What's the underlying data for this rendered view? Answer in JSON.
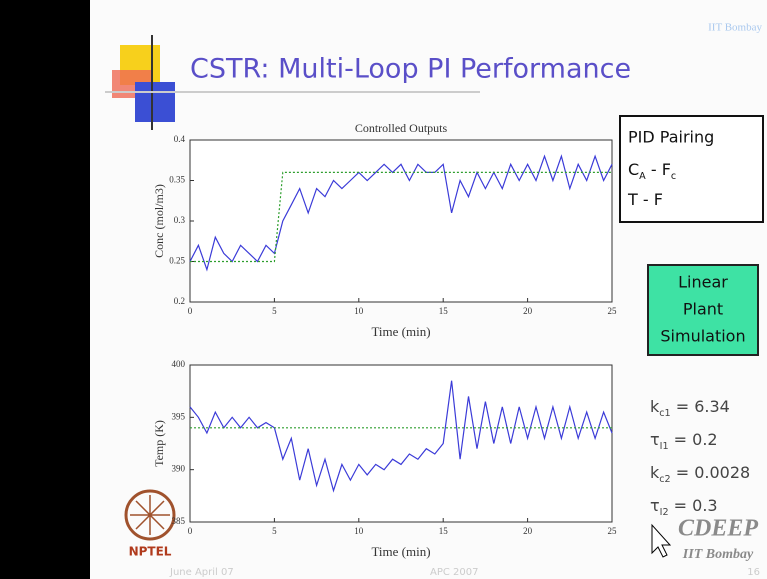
{
  "slide": {
    "title": "CSTR: Multi-Loop PI Performance",
    "institute": "IIT Bombay",
    "pid_box": {
      "heading": "PID Pairing",
      "pairs": [
        [
          "C",
          "A",
          " - F",
          "c"
        ],
        [
          "T - F"
        ]
      ]
    },
    "sim_box": [
      "Linear",
      "Plant",
      "Simulation"
    ],
    "params": [
      [
        "k",
        "c1",
        " = 6.34"
      ],
      [
        "τ",
        "I1",
        " = 0.2"
      ],
      [
        "k",
        "c2",
        " = 0.0028"
      ],
      [
        "τ",
        "I2",
        " = 0.3"
      ]
    ],
    "footer": {
      "date": "June April 07",
      "course": "APC 2007",
      "page": "16"
    },
    "logos": {
      "nptel": "NPTEL",
      "cdeep": "CDEEP",
      "cdeep_sub": "IIT Bombay"
    }
  },
  "chart_data": [
    {
      "type": "line",
      "title": "Controlled Outputs",
      "xlabel": "Time (min)",
      "ylabel": "Conc (mol/m3)",
      "x": [
        0,
        0.5,
        1,
        1.5,
        2,
        2.5,
        3,
        3.5,
        4,
        4.5,
        5,
        5.5,
        6,
        6.5,
        7,
        7.5,
        8,
        8.5,
        9,
        9.5,
        10,
        10.5,
        11,
        11.5,
        12,
        12.5,
        13,
        13.5,
        14,
        14.5,
        15,
        15.5,
        16,
        16.5,
        17,
        17.5,
        18,
        18.5,
        19,
        19.5,
        20,
        20.5,
        21,
        21.5,
        22,
        22.5,
        23,
        23.5,
        24,
        24.5,
        25
      ],
      "xlim": [
        0,
        25
      ],
      "xticks": [
        0,
        5,
        10,
        15,
        20,
        25
      ],
      "ylim": [
        0.2,
        0.4
      ],
      "yticks": [
        0.2,
        0.25,
        0.3,
        0.35,
        0.4
      ],
      "series": [
        {
          "color": "#3b3bd8",
          "style": "solid",
          "values": [
            0.25,
            0.27,
            0.24,
            0.28,
            0.26,
            0.25,
            0.27,
            0.26,
            0.25,
            0.27,
            0.26,
            0.3,
            0.32,
            0.34,
            0.31,
            0.34,
            0.33,
            0.35,
            0.34,
            0.35,
            0.36,
            0.35,
            0.36,
            0.37,
            0.36,
            0.37,
            0.35,
            0.37,
            0.36,
            0.36,
            0.37,
            0.31,
            0.35,
            0.33,
            0.36,
            0.34,
            0.36,
            0.34,
            0.37,
            0.35,
            0.37,
            0.35,
            0.38,
            0.35,
            0.38,
            0.34,
            0.37,
            0.35,
            0.38,
            0.35,
            0.37
          ]
        },
        {
          "color": "#2e9e2e",
          "style": "dotted",
          "values": [
            0.25,
            0.25,
            0.25,
            0.25,
            0.25,
            0.25,
            0.25,
            0.25,
            0.25,
            0.25,
            0.25,
            0.36,
            0.36,
            0.36,
            0.36,
            0.36,
            0.36,
            0.36,
            0.36,
            0.36,
            0.36,
            0.36,
            0.36,
            0.36,
            0.36,
            0.36,
            0.36,
            0.36,
            0.36,
            0.36,
            0.36,
            0.36,
            0.36,
            0.36,
            0.36,
            0.36,
            0.36,
            0.36,
            0.36,
            0.36,
            0.36,
            0.36,
            0.36,
            0.36,
            0.36,
            0.36,
            0.36,
            0.36,
            0.36,
            0.36,
            0.36
          ]
        }
      ]
    },
    {
      "type": "line",
      "xlabel": "Time (min)",
      "ylabel": "Temp (K)",
      "x": [
        0,
        0.5,
        1,
        1.5,
        2,
        2.5,
        3,
        3.5,
        4,
        4.5,
        5,
        5.5,
        6,
        6.5,
        7,
        7.5,
        8,
        8.5,
        9,
        9.5,
        10,
        10.5,
        11,
        11.5,
        12,
        12.5,
        13,
        13.5,
        14,
        14.5,
        15,
        15.5,
        16,
        16.5,
        17,
        17.5,
        18,
        18.5,
        19,
        19.5,
        20,
        20.5,
        21,
        21.5,
        22,
        22.5,
        23,
        23.5,
        24,
        24.5,
        25
      ],
      "xlim": [
        0,
        25
      ],
      "xticks": [
        0,
        5,
        10,
        15,
        20,
        25
      ],
      "ylim": [
        385,
        400
      ],
      "yticks": [
        385,
        390,
        395,
        400
      ],
      "series": [
        {
          "color": "#3b3bd8",
          "style": "solid",
          "values": [
            396,
            395,
            393.5,
            395.5,
            394,
            395,
            394,
            395,
            394,
            394.5,
            394,
            391,
            393,
            389,
            392,
            388.5,
            391,
            388,
            390.5,
            389,
            390.5,
            389.5,
            390.5,
            390,
            391,
            390.5,
            391.5,
            391,
            392,
            391.5,
            392.5,
            398.5,
            391,
            397,
            392,
            396.5,
            392.5,
            396,
            392.5,
            396,
            393,
            396,
            393,
            396,
            393,
            396,
            393,
            395.5,
            393,
            395.5,
            393.5
          ]
        },
        {
          "color": "#2e9e2e",
          "style": "dotted",
          "values": [
            394,
            394,
            394,
            394,
            394,
            394,
            394,
            394,
            394,
            394,
            394,
            394,
            394,
            394,
            394,
            394,
            394,
            394,
            394,
            394,
            394,
            394,
            394,
            394,
            394,
            394,
            394,
            394,
            394,
            394,
            394,
            394,
            394,
            394,
            394,
            394,
            394,
            394,
            394,
            394,
            394,
            394,
            394,
            394,
            394,
            394,
            394,
            394,
            394,
            394,
            394
          ]
        }
      ]
    }
  ]
}
